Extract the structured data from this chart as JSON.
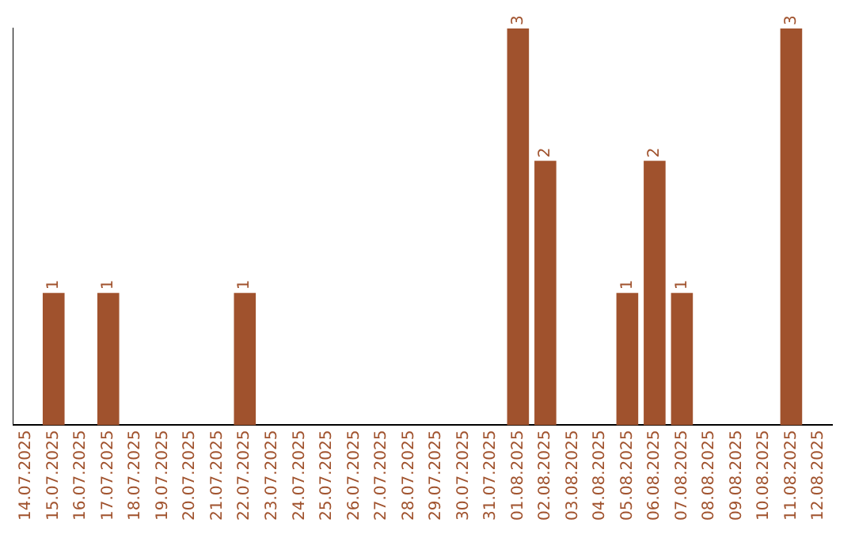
{
  "chart_data": {
    "type": "bar",
    "categories": [
      "14.07.2025",
      "15.07.2025",
      "16.07.2025",
      "17.07.2025",
      "18.07.2025",
      "19.07.2025",
      "20.07.2025",
      "21.07.2025",
      "22.07.2025",
      "23.07.2025",
      "24.07.2025",
      "25.07.2025",
      "26.07.2025",
      "27.07.2025",
      "28.07.2025",
      "29.07.2025",
      "30.07.2025",
      "31.07.2025",
      "01.08.2025",
      "02.08.2025",
      "03.08.2025",
      "04.08.2025",
      "05.08.2025",
      "06.08.2025",
      "07.08.2025",
      "08.08.2025",
      "09.08.2025",
      "10.08.2025",
      "11.08.2025",
      "12.08.2025"
    ],
    "values": [
      0,
      1,
      0,
      1,
      0,
      0,
      0,
      0,
      1,
      0,
      0,
      0,
      0,
      0,
      0,
      0,
      0,
      0,
      3,
      2,
      0,
      0,
      1,
      2,
      1,
      0,
      0,
      0,
      3,
      0
    ],
    "value_labels": [
      null,
      "1",
      null,
      "1",
      null,
      null,
      null,
      null,
      "1",
      null,
      null,
      null,
      null,
      null,
      null,
      null,
      null,
      null,
      "3",
      "2",
      null,
      null,
      "1",
      "2",
      "1",
      null,
      null,
      null,
      "3",
      null
    ],
    "color": "#a0522d",
    "tick_labels": "x",
    "grid": false,
    "legend": false
  }
}
